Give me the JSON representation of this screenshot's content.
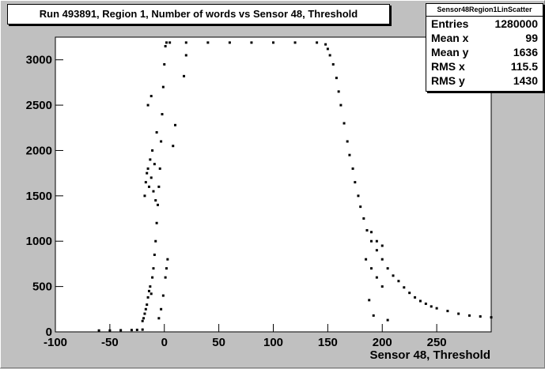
{
  "chart_data": {
    "type": "scatter",
    "title": "Run 493891, Region 1, Number of words vs Sensor 48, Threshold",
    "xlabel": "Sensor 48, Threshold",
    "ylabel": "",
    "xlim": [
      -100,
      300
    ],
    "ylim": [
      0,
      3250
    ],
    "x_ticks": [
      -100,
      -50,
      0,
      50,
      100,
      150,
      200,
      250
    ],
    "y_ticks": [
      0,
      500,
      1000,
      1500,
      2000,
      2500,
      3000
    ],
    "x_tick_labels": [
      "-100",
      "-50",
      "0",
      "50",
      "100",
      "150",
      "200",
      "250"
    ],
    "y_tick_labels": [
      "0",
      "500",
      "1000",
      "1500",
      "2000",
      "2500",
      "3000"
    ],
    "grid": false,
    "legend": "none",
    "series": [
      {
        "points": [
          [
            -60,
            15
          ],
          [
            -50,
            15
          ],
          [
            -40,
            18
          ],
          [
            -30,
            20
          ],
          [
            -25,
            22
          ],
          [
            -20,
            25
          ],
          [
            -20,
            120
          ],
          [
            -19,
            150
          ],
          [
            -18,
            200
          ],
          [
            -17,
            250
          ],
          [
            -16,
            300
          ],
          [
            -15,
            380
          ],
          [
            -14,
            450
          ],
          [
            -13,
            500
          ],
          [
            -12,
            420
          ],
          [
            -11,
            600
          ],
          [
            -10,
            700
          ],
          [
            -9,
            850
          ],
          [
            -8,
            1000
          ],
          [
            -7,
            1200
          ],
          [
            -6,
            1400
          ],
          [
            -5,
            1600
          ],
          [
            -4,
            1800
          ],
          [
            -3,
            2100
          ],
          [
            -2,
            2400
          ],
          [
            -1,
            2700
          ],
          [
            0,
            2950
          ],
          [
            1,
            3150
          ],
          [
            2,
            3190
          ],
          [
            -18,
            1500
          ],
          [
            -17,
            1650
          ],
          [
            -16,
            1750
          ],
          [
            -15,
            1800
          ],
          [
            -14,
            1600
          ],
          [
            -13,
            1900
          ],
          [
            -12,
            1700
          ],
          [
            -11,
            2000
          ],
          [
            -10,
            1550
          ],
          [
            -9,
            1850
          ],
          [
            -8,
            1450
          ],
          [
            -7,
            2200
          ],
          [
            -15,
            2500
          ],
          [
            -12,
            2600
          ],
          [
            -5,
            150
          ],
          [
            -3,
            250
          ],
          [
            -1,
            400
          ],
          [
            1,
            600
          ],
          [
            2,
            700
          ],
          [
            3,
            800
          ],
          [
            20,
            3050
          ],
          [
            18,
            2820
          ],
          [
            10,
            2280
          ],
          [
            8,
            2050
          ],
          [
            5,
            3190
          ],
          [
            20,
            3190
          ],
          [
            40,
            3190
          ],
          [
            60,
            3190
          ],
          [
            80,
            3190
          ],
          [
            100,
            3190
          ],
          [
            120,
            3190
          ],
          [
            140,
            3190
          ],
          [
            148,
            3170
          ],
          [
            150,
            3120
          ],
          [
            152,
            3050
          ],
          [
            155,
            2950
          ],
          [
            158,
            2800
          ],
          [
            160,
            2650
          ],
          [
            162,
            2500
          ],
          [
            165,
            2300
          ],
          [
            168,
            2100
          ],
          [
            170,
            1950
          ],
          [
            173,
            1800
          ],
          [
            175,
            1650
          ],
          [
            178,
            1500
          ],
          [
            180,
            1380
          ],
          [
            183,
            1250
          ],
          [
            186,
            1120
          ],
          [
            190,
            1000
          ],
          [
            195,
            900
          ],
          [
            200,
            800
          ],
          [
            205,
            700
          ],
          [
            210,
            620
          ],
          [
            215,
            560
          ],
          [
            220,
            490
          ],
          [
            225,
            430
          ],
          [
            230,
            380
          ],
          [
            235,
            340
          ],
          [
            240,
            310
          ],
          [
            245,
            280
          ],
          [
            250,
            260
          ],
          [
            260,
            230
          ],
          [
            270,
            200
          ],
          [
            280,
            180
          ],
          [
            290,
            170
          ],
          [
            300,
            160
          ],
          [
            185,
            800
          ],
          [
            190,
            700
          ],
          [
            195,
            600
          ],
          [
            200,
            500
          ],
          [
            188,
            350
          ],
          [
            192,
            180
          ],
          [
            205,
            130
          ],
          [
            190,
            1100
          ],
          [
            195,
            1000
          ],
          [
            200,
            950
          ]
        ]
      }
    ]
  },
  "stats": {
    "name": "Sensor48Region1LinScatter",
    "rows": [
      {
        "label": "Entries",
        "value": "1280000"
      },
      {
        "label": "Mean x",
        "value": "99"
      },
      {
        "label": "Mean y",
        "value": "1636"
      },
      {
        "label": "RMS x",
        "value": "115.5"
      },
      {
        "label": "RMS y",
        "value": "1430"
      }
    ]
  }
}
